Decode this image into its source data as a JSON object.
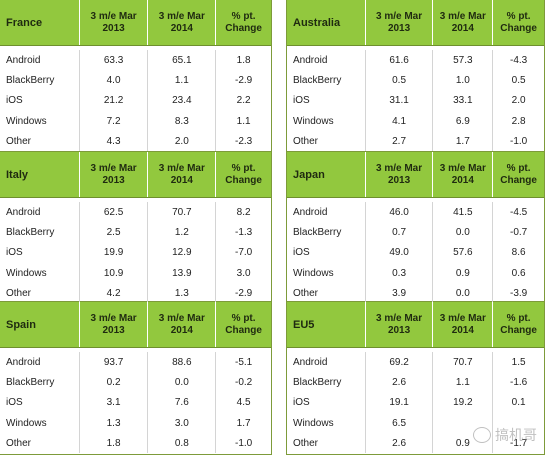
{
  "headers": {
    "period_2013": "3 m/e Mar 2013",
    "period_2014": "3 m/e Mar 2014",
    "change": "% pt. Change"
  },
  "panels": [
    {
      "region": "France",
      "rows": [
        {
          "os": "Android",
          "v2013": "63.3",
          "v2014": "65.1",
          "change": "1.8"
        },
        {
          "os": "BlackBerry",
          "v2013": "4.0",
          "v2014": "1.1",
          "change": "-2.9"
        },
        {
          "os": "iOS",
          "v2013": "21.2",
          "v2014": "23.4",
          "change": "2.2"
        },
        {
          "os": "Windows",
          "v2013": "7.2",
          "v2014": "8.3",
          "change": "1.1"
        },
        {
          "os": "Other",
          "v2013": "4.3",
          "v2014": "2.0",
          "change": "-2.3"
        }
      ]
    },
    {
      "region": "Australia",
      "rows": [
        {
          "os": "Android",
          "v2013": "61.6",
          "v2014": "57.3",
          "change": "-4.3"
        },
        {
          "os": "BlackBerry",
          "v2013": "0.5",
          "v2014": "1.0",
          "change": "0.5"
        },
        {
          "os": "iOS",
          "v2013": "31.1",
          "v2014": "33.1",
          "change": "2.0"
        },
        {
          "os": "Windows",
          "v2013": "4.1",
          "v2014": "6.9",
          "change": "2.8"
        },
        {
          "os": "Other",
          "v2013": "2.7",
          "v2014": "1.7",
          "change": "-1.0"
        }
      ]
    },
    {
      "region": "Italy",
      "rows": [
        {
          "os": "Android",
          "v2013": "62.5",
          "v2014": "70.7",
          "change": "8.2"
        },
        {
          "os": "BlackBerry",
          "v2013": "2.5",
          "v2014": "1.2",
          "change": "-1.3"
        },
        {
          "os": "iOS",
          "v2013": "19.9",
          "v2014": "12.9",
          "change": "-7.0"
        },
        {
          "os": "Windows",
          "v2013": "10.9",
          "v2014": "13.9",
          "change": "3.0"
        },
        {
          "os": "Other",
          "v2013": "4.2",
          "v2014": "1.3",
          "change": "-2.9"
        }
      ]
    },
    {
      "region": "Japan",
      "rows": [
        {
          "os": "Android",
          "v2013": "46.0",
          "v2014": "41.5",
          "change": "-4.5"
        },
        {
          "os": "BlackBerry",
          "v2013": "0.7",
          "v2014": "0.0",
          "change": "-0.7"
        },
        {
          "os": "iOS",
          "v2013": "49.0",
          "v2014": "57.6",
          "change": "8.6"
        },
        {
          "os": "Windows",
          "v2013": "0.3",
          "v2014": "0.9",
          "change": "0.6"
        },
        {
          "os": "Other",
          "v2013": "3.9",
          "v2014": "0.0",
          "change": "-3.9"
        }
      ]
    },
    {
      "region": "Spain",
      "rows": [
        {
          "os": "Android",
          "v2013": "93.7",
          "v2014": "88.6",
          "change": "-5.1"
        },
        {
          "os": "BlackBerry",
          "v2013": "0.2",
          "v2014": "0.0",
          "change": "-0.2"
        },
        {
          "os": "iOS",
          "v2013": "3.1",
          "v2014": "7.6",
          "change": "4.5"
        },
        {
          "os": "Windows",
          "v2013": "1.3",
          "v2014": "3.0",
          "change": "1.7"
        },
        {
          "os": "Other",
          "v2013": "1.8",
          "v2014": "0.8",
          "change": "-1.0"
        }
      ]
    },
    {
      "region": "EU5",
      "rows": [
        {
          "os": "Android",
          "v2013": "69.2",
          "v2014": "70.7",
          "change": "1.5"
        },
        {
          "os": "BlackBerry",
          "v2013": "2.6",
          "v2014": "1.1",
          "change": "-1.6"
        },
        {
          "os": "iOS",
          "v2013": "19.1",
          "v2014": "19.2",
          "change": "0.1"
        },
        {
          "os": "Windows",
          "v2013": "6.5",
          "v2014": "",
          "change": ""
        },
        {
          "os": "Other",
          "v2013": "2.6",
          "v2014": "0.9",
          "change": "-1.7"
        }
      ]
    }
  ],
  "watermark": {
    "text": "搞机哥",
    "icon": "wechat-icon"
  },
  "colors": {
    "header_green": "#92c83e",
    "border_green": "#7d9b3a"
  }
}
